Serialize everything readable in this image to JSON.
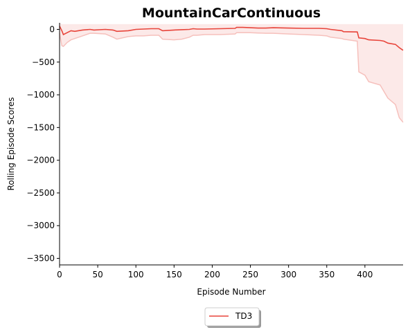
{
  "chart_data": {
    "type": "line",
    "title": "MountainCarContinuous",
    "xlabel": "Episode Number",
    "ylabel": "Rolling Episode Scores",
    "xlim": [
      0,
      450
    ],
    "ylim": [
      -3600,
      100
    ],
    "xticks": [
      0,
      50,
      100,
      150,
      200,
      250,
      300,
      350,
      400
    ],
    "yticks": [
      0,
      -500,
      -1000,
      -1500,
      -2000,
      -2500,
      -3000,
      -3500
    ],
    "xtick_labels": [
      "0",
      "50",
      "100",
      "150",
      "200",
      "250",
      "300",
      "350",
      "400"
    ],
    "ytick_labels": [
      "0",
      "−500",
      "−1000",
      "−1500",
      "−2000",
      "−2500",
      "−3000",
      "−3500"
    ],
    "grid": false,
    "legend_position": "bottom-center",
    "series": [
      {
        "name": "TD3",
        "color": "#e8443a",
        "band_color": "#f9d3d1",
        "band_edge_color": "#f6c0bc",
        "x": [
          0,
          3,
          5,
          10,
          15,
          20,
          30,
          40,
          45,
          60,
          70,
          75,
          90,
          100,
          110,
          120,
          130,
          135,
          150,
          160,
          170,
          175,
          180,
          190,
          210,
          230,
          232,
          240,
          250,
          260,
          270,
          280,
          300,
          320,
          340,
          350,
          355,
          370,
          372,
          390,
          392,
          400,
          405,
          420,
          425,
          430,
          440,
          445,
          450
        ],
        "mean": [
          50,
          -20,
          -80,
          -50,
          -20,
          -30,
          -10,
          0,
          -10,
          0,
          -10,
          -30,
          -20,
          0,
          5,
          10,
          10,
          -20,
          -10,
          -5,
          0,
          10,
          5,
          5,
          10,
          15,
          30,
          30,
          25,
          20,
          20,
          25,
          20,
          15,
          15,
          10,
          0,
          -20,
          -35,
          -40,
          -130,
          -140,
          -160,
          -170,
          -180,
          -210,
          -230,
          -280,
          -320
        ],
        "upper": [
          100,
          80,
          80,
          80,
          80,
          80,
          80,
          80,
          80,
          80,
          80,
          80,
          80,
          80,
          80,
          80,
          80,
          80,
          80,
          80,
          80,
          80,
          80,
          80,
          80,
          80,
          80,
          80,
          80,
          80,
          80,
          80,
          80,
          80,
          80,
          80,
          80,
          80,
          80,
          80,
          80,
          80,
          80,
          80,
          80,
          80,
          80,
          80,
          80
        ],
        "lower": [
          -60,
          -250,
          -260,
          -200,
          -160,
          -140,
          -100,
          -60,
          -60,
          -70,
          -120,
          -150,
          -110,
          -100,
          -100,
          -90,
          -90,
          -150,
          -160,
          -150,
          -120,
          -90,
          -90,
          -80,
          -80,
          -70,
          -50,
          -50,
          -50,
          -55,
          -60,
          -60,
          -70,
          -80,
          -90,
          -100,
          -120,
          -140,
          -150,
          -180,
          -650,
          -700,
          -800,
          -850,
          -950,
          -1050,
          -1150,
          -1350,
          -1420
        ]
      }
    ]
  }
}
